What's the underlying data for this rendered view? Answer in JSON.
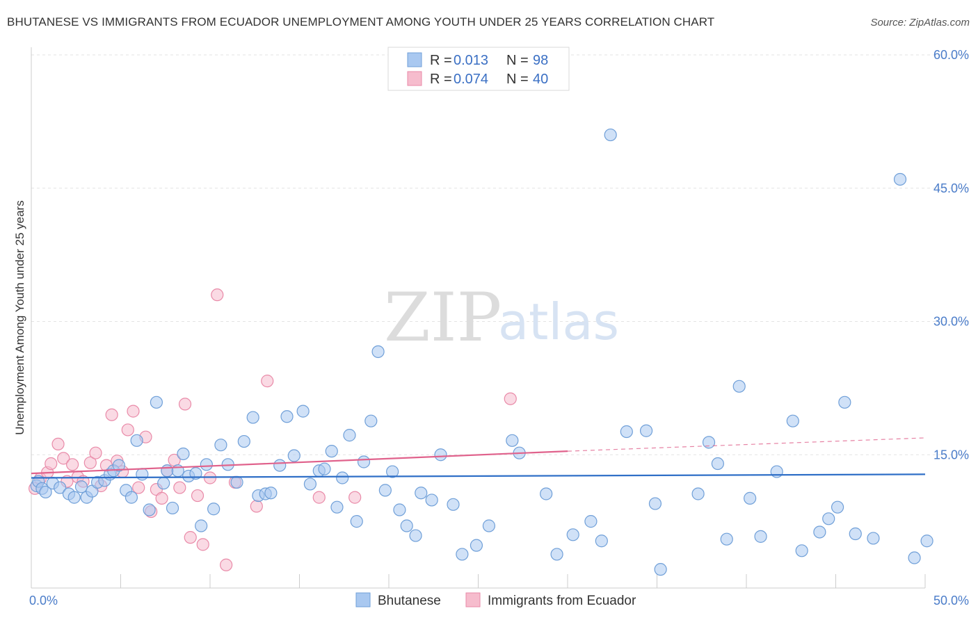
{
  "header": {
    "title": "BHUTANESE VS IMMIGRANTS FROM ECUADOR UNEMPLOYMENT AMONG YOUTH UNDER 25 YEARS CORRELATION CHART",
    "source": "Source: ZipAtlas.com"
  },
  "watermark": {
    "zip": "ZIP",
    "atlas": "atlas"
  },
  "legend": {
    "items": [
      {
        "r_label": "R =",
        "r_value": "0.013",
        "n_label": "N =",
        "n_value": "98"
      },
      {
        "r_label": "R =",
        "r_value": "0.074",
        "n_label": "N =",
        "n_value": "40"
      }
    ]
  },
  "bottom_legend": {
    "items": [
      {
        "label": "Bhutanese"
      },
      {
        "label": "Immigrants from Ecuador"
      }
    ]
  },
  "colors": {
    "bhutanese_fill": "#a9c8f0",
    "bhutanese_stroke": "#6f9fd8",
    "bhutanese_line": "#2f6fc7",
    "ecuador_fill": "#f6bccd",
    "ecuador_stroke": "#e98aa8",
    "ecuador_line": "#e0628c",
    "tick_label": "#4a7cc9",
    "grid": "#e3e3e3"
  },
  "chart_data": {
    "type": "scatter",
    "title": "BHUTANESE VS IMMIGRANTS FROM ECUADOR UNEMPLOYMENT AMONG YOUTH UNDER 25 YEARS CORRELATION CHART",
    "xlabel": "",
    "ylabel": "Unemployment Among Youth under 25 years",
    "xlim": [
      0,
      50
    ],
    "ylim": [
      0,
      60
    ],
    "x_tick_labels": [
      "0.0%",
      "50.0%"
    ],
    "y_ticks": [
      15,
      30,
      45,
      60
    ],
    "y_tick_labels": [
      "15.0%",
      "30.0%",
      "45.0%",
      "60.0%"
    ],
    "grid": true,
    "legend_position": "top-center",
    "series": [
      {
        "name": "Bhutanese",
        "trend": {
          "x": [
            0,
            50
          ],
          "y": [
            12.4,
            12.8
          ]
        },
        "points": [
          [
            0.3,
            11.5
          ],
          [
            0.4,
            12.0
          ],
          [
            0.6,
            11.2
          ],
          [
            0.8,
            10.8
          ],
          [
            1.2,
            11.8
          ],
          [
            1.6,
            11.3
          ],
          [
            2.1,
            10.6
          ],
          [
            2.4,
            10.2
          ],
          [
            2.8,
            11.4
          ],
          [
            3.1,
            10.2
          ],
          [
            3.4,
            10.9
          ],
          [
            3.7,
            11.9
          ],
          [
            4.1,
            12.1
          ],
          [
            4.4,
            12.8
          ],
          [
            4.6,
            13.2
          ],
          [
            4.9,
            13.8
          ],
          [
            5.3,
            11.0
          ],
          [
            5.6,
            10.2
          ],
          [
            5.9,
            16.6
          ],
          [
            6.2,
            12.8
          ],
          [
            6.6,
            8.8
          ],
          [
            7.0,
            20.9
          ],
          [
            7.4,
            11.8
          ],
          [
            7.6,
            13.2
          ],
          [
            7.9,
            9.0
          ],
          [
            8.2,
            13.2
          ],
          [
            8.5,
            15.1
          ],
          [
            8.8,
            12.6
          ],
          [
            9.2,
            12.9
          ],
          [
            9.5,
            7.0
          ],
          [
            9.8,
            13.9
          ],
          [
            10.2,
            8.9
          ],
          [
            10.6,
            16.1
          ],
          [
            11.0,
            13.9
          ],
          [
            11.5,
            11.9
          ],
          [
            11.9,
            16.5
          ],
          [
            12.4,
            19.2
          ],
          [
            12.7,
            10.4
          ],
          [
            13.1,
            10.6
          ],
          [
            13.4,
            10.7
          ],
          [
            13.9,
            13.8
          ],
          [
            14.3,
            19.3
          ],
          [
            14.7,
            14.9
          ],
          [
            15.2,
            19.9
          ],
          [
            15.6,
            11.7
          ],
          [
            16.1,
            13.2
          ],
          [
            16.4,
            13.4
          ],
          [
            16.8,
            15.4
          ],
          [
            17.1,
            9.1
          ],
          [
            17.4,
            12.4
          ],
          [
            17.8,
            17.2
          ],
          [
            18.2,
            7.5
          ],
          [
            18.6,
            14.2
          ],
          [
            19.0,
            18.8
          ],
          [
            19.4,
            26.6
          ],
          [
            19.8,
            11.0
          ],
          [
            20.2,
            13.1
          ],
          [
            20.6,
            8.8
          ],
          [
            21.0,
            7.0
          ],
          [
            21.5,
            5.9
          ],
          [
            21.8,
            10.7
          ],
          [
            22.4,
            9.9
          ],
          [
            22.9,
            15.0
          ],
          [
            23.6,
            9.4
          ],
          [
            24.1,
            3.8
          ],
          [
            24.9,
            4.8
          ],
          [
            25.6,
            7.0
          ],
          [
            26.9,
            16.6
          ],
          [
            27.3,
            15.2
          ],
          [
            28.8,
            10.6
          ],
          [
            29.4,
            3.8
          ],
          [
            30.3,
            6.0
          ],
          [
            31.3,
            7.5
          ],
          [
            31.9,
            5.3
          ],
          [
            32.4,
            51.0
          ],
          [
            33.3,
            17.6
          ],
          [
            34.4,
            17.7
          ],
          [
            34.9,
            9.5
          ],
          [
            35.2,
            2.1
          ],
          [
            37.3,
            10.6
          ],
          [
            37.9,
            16.4
          ],
          [
            38.4,
            14.0
          ],
          [
            38.9,
            5.5
          ],
          [
            39.6,
            22.7
          ],
          [
            40.2,
            10.1
          ],
          [
            40.8,
            5.8
          ],
          [
            41.7,
            13.1
          ],
          [
            42.6,
            18.8
          ],
          [
            43.1,
            4.2
          ],
          [
            44.1,
            6.3
          ],
          [
            44.6,
            7.8
          ],
          [
            45.1,
            9.1
          ],
          [
            45.5,
            20.9
          ],
          [
            46.1,
            6.1
          ],
          [
            47.1,
            5.6
          ],
          [
            49.4,
            3.4
          ],
          [
            48.6,
            46.0
          ],
          [
            50.1,
            5.3
          ]
        ]
      },
      {
        "name": "Immigrants from Ecuador",
        "trend": {
          "x": [
            0,
            30
          ],
          "y": [
            12.9,
            15.4
          ]
        },
        "trend_extension": {
          "x": [
            30,
            50
          ],
          "y": [
            15.4,
            16.9
          ]
        },
        "points": [
          [
            0.2,
            11.2
          ],
          [
            0.5,
            12.3
          ],
          [
            0.9,
            13.0
          ],
          [
            1.1,
            14.0
          ],
          [
            1.5,
            16.2
          ],
          [
            1.8,
            14.6
          ],
          [
            2.0,
            12.0
          ],
          [
            2.3,
            13.9
          ],
          [
            2.6,
            12.5
          ],
          [
            2.9,
            12.0
          ],
          [
            3.3,
            14.1
          ],
          [
            3.6,
            15.2
          ],
          [
            3.9,
            11.5
          ],
          [
            4.2,
            13.8
          ],
          [
            4.5,
            19.5
          ],
          [
            4.8,
            14.3
          ],
          [
            5.1,
            13.1
          ],
          [
            5.4,
            17.8
          ],
          [
            5.7,
            19.9
          ],
          [
            6.0,
            11.3
          ],
          [
            6.4,
            17.0
          ],
          [
            6.7,
            8.6
          ],
          [
            7.0,
            11.1
          ],
          [
            7.3,
            10.1
          ],
          [
            7.6,
            13.2
          ],
          [
            8.0,
            14.4
          ],
          [
            8.3,
            11.3
          ],
          [
            8.6,
            20.7
          ],
          [
            8.9,
            5.7
          ],
          [
            9.3,
            10.4
          ],
          [
            9.6,
            4.9
          ],
          [
            10.0,
            12.4
          ],
          [
            10.4,
            33.0
          ],
          [
            10.9,
            2.6
          ],
          [
            11.4,
            11.9
          ],
          [
            12.6,
            9.2
          ],
          [
            13.2,
            23.3
          ],
          [
            16.1,
            10.2
          ],
          [
            18.1,
            10.2
          ],
          [
            26.8,
            21.3
          ]
        ]
      }
    ]
  }
}
